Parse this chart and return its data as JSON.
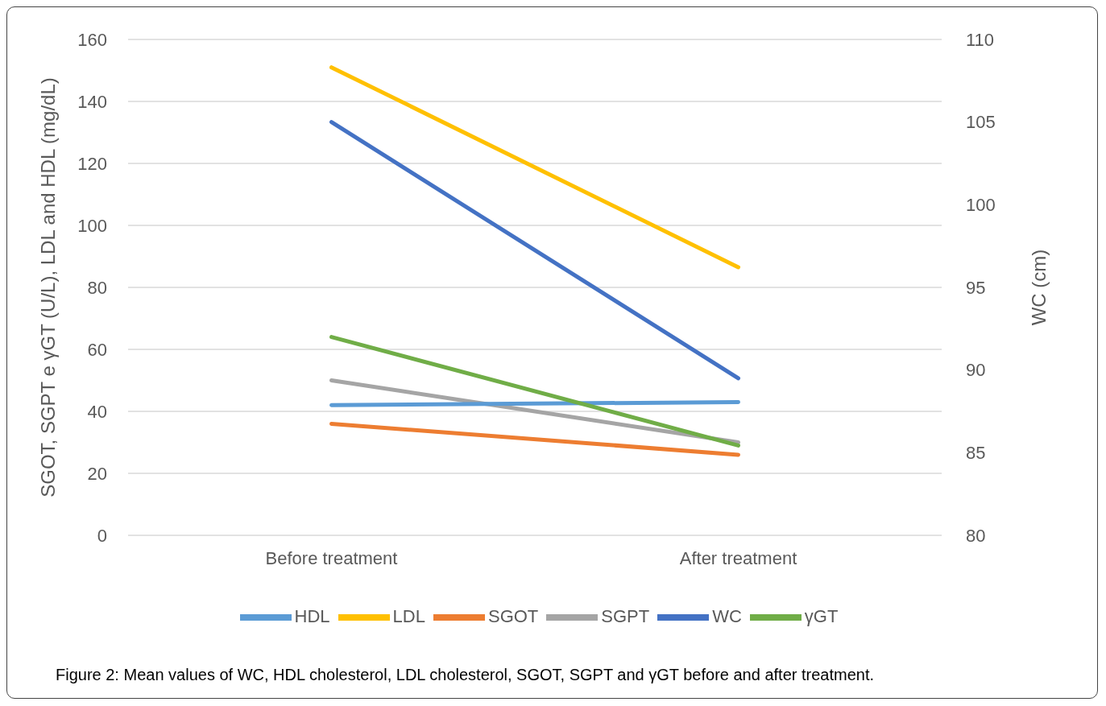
{
  "chart_data": {
    "type": "line",
    "title": "Figure 2: Mean values of WC, HDL cholesterol, LDL cholesterol, SGOT, SGPT and γGT before and after treatment.",
    "ylabel": "SGOT, SGPT e γGT (U/L), LDL and HDL (mg/dL)",
    "y2label": "WC (cm)",
    "categories": [
      "Before treatment",
      "After treatment"
    ],
    "series": [
      {
        "name": "SGOT",
        "color": "#ed7d31",
        "values": [
          36,
          26
        ]
      },
      {
        "name": "SGPT",
        "color": "#a5a5a5",
        "values": [
          50,
          30
        ]
      },
      {
        "name": "LDL",
        "color": "#ffc000",
        "values": [
          151,
          86.5
        ]
      },
      {
        "name": "HDL",
        "color": "#5b9bd5",
        "values": [
          42,
          43
        ]
      },
      {
        "name": "γGT",
        "color": "#70ad47",
        "values": [
          64,
          29
        ]
      },
      {
        "name": "WC",
        "color": "#4472c4",
        "values": [
          105,
          89.5
        ],
        "axis": "y2"
      }
    ],
    "ylim": [
      0,
      160
    ],
    "yticks": [
      0,
      20,
      40,
      60,
      80,
      100,
      120,
      140,
      160
    ],
    "y2lim": [
      80,
      110
    ],
    "y2ticks": [
      80,
      85,
      90,
      95,
      100,
      105,
      110
    ],
    "grid": "y",
    "legend": "bottom",
    "marker": "none",
    "line_style": "solid"
  }
}
